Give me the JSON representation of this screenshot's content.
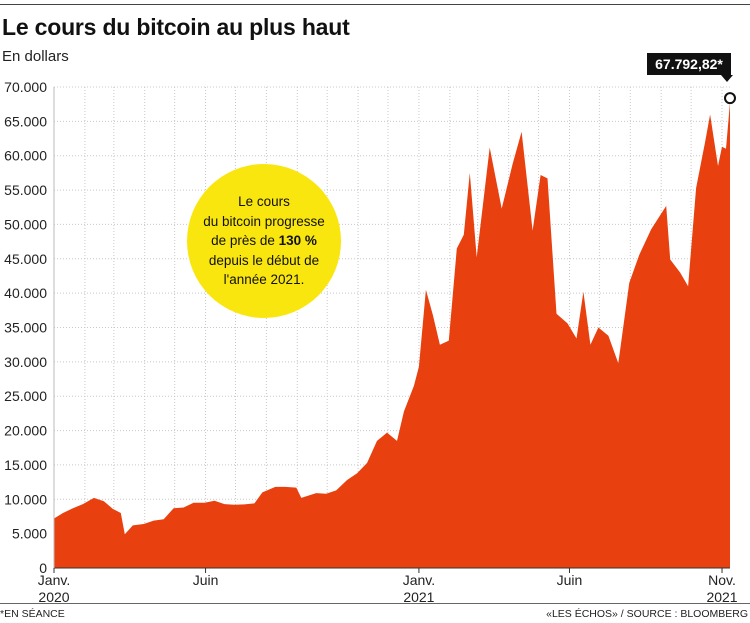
{
  "header": {
    "title": "Le cours du bitcoin au plus haut",
    "subtitle": "En dollars"
  },
  "callout": {
    "line1": "Le cours",
    "line2": "du bitcoin progresse",
    "line3_pre": "de près de ",
    "line3_bold": "130 %",
    "line4": "depuis le début de",
    "line5": "l'année 2021."
  },
  "badge": {
    "value": "67.792,82*"
  },
  "footer": {
    "note": "*EN SÉANCE",
    "source": "«LES ÉCHOS» / SOURCE : BLOOMBERG"
  },
  "colors": {
    "area": "#e8400f",
    "callout": "#fae60f",
    "badge": "#111111"
  },
  "chart_data": {
    "type": "area",
    "ylim": [
      0,
      70000
    ],
    "yticks": [
      "0",
      "5.000",
      "10.000",
      "15.000",
      "20.000",
      "25.000",
      "30.000",
      "35.000",
      "40.000",
      "45.000",
      "50.000",
      "55.000",
      "60.000",
      "65.000",
      "70.000"
    ],
    "xlim": [
      "2020-01-01",
      "2021-11-09"
    ],
    "xticks": [
      {
        "date": "2020-01-01",
        "label": "Janv.",
        "sub": "2020"
      },
      {
        "date": "2020-06-01",
        "label": "Juin",
        "sub": ""
      },
      {
        "date": "2021-01-01",
        "label": "Janv.",
        "sub": "2021"
      },
      {
        "date": "2021-06-01",
        "label": "Juin",
        "sub": ""
      },
      {
        "date": "2021-11-01",
        "label": "Nov.",
        "sub": "2021"
      }
    ],
    "grid": true,
    "series": [
      {
        "values": [
          [
            "2020-01-01",
            7200
          ],
          [
            "2020-01-10",
            8000
          ],
          [
            "2020-01-20",
            8700
          ],
          [
            "2020-01-30",
            9300
          ],
          [
            "2020-02-10",
            10200
          ],
          [
            "2020-02-20",
            9700
          ],
          [
            "2020-02-29",
            8600
          ],
          [
            "2020-03-08",
            8000
          ],
          [
            "2020-03-12",
            4900
          ],
          [
            "2020-03-20",
            6200
          ],
          [
            "2020-03-31",
            6400
          ],
          [
            "2020-04-10",
            6900
          ],
          [
            "2020-04-20",
            7100
          ],
          [
            "2020-04-30",
            8700
          ],
          [
            "2020-05-10",
            8800
          ],
          [
            "2020-05-20",
            9500
          ],
          [
            "2020-05-31",
            9500
          ],
          [
            "2020-06-10",
            9800
          ],
          [
            "2020-06-20",
            9300
          ],
          [
            "2020-06-30",
            9200
          ],
          [
            "2020-07-10",
            9250
          ],
          [
            "2020-07-20",
            9400
          ],
          [
            "2020-07-28",
            11000
          ],
          [
            "2020-08-10",
            11800
          ],
          [
            "2020-08-20",
            11800
          ],
          [
            "2020-08-31",
            11700
          ],
          [
            "2020-09-05",
            10200
          ],
          [
            "2020-09-20",
            10900
          ],
          [
            "2020-09-30",
            10800
          ],
          [
            "2020-10-10",
            11300
          ],
          [
            "2020-10-21",
            12800
          ],
          [
            "2020-10-31",
            13800
          ],
          [
            "2020-11-10",
            15300
          ],
          [
            "2020-11-20",
            18500
          ],
          [
            "2020-11-30",
            19700
          ],
          [
            "2020-12-10",
            18500
          ],
          [
            "2020-12-17",
            22800
          ],
          [
            "2020-12-27",
            26500
          ],
          [
            "2021-01-01",
            29300
          ],
          [
            "2021-01-08",
            40500
          ],
          [
            "2021-01-15",
            36800
          ],
          [
            "2021-01-22",
            32500
          ],
          [
            "2021-01-31",
            33100
          ],
          [
            "2021-02-08",
            46500
          ],
          [
            "2021-02-15",
            48500
          ],
          [
            "2021-02-21",
            57500
          ],
          [
            "2021-02-28",
            45200
          ],
          [
            "2021-03-13",
            61200
          ],
          [
            "2021-03-25",
            52300
          ],
          [
            "2021-04-05",
            58800
          ],
          [
            "2021-04-14",
            63500
          ],
          [
            "2021-04-25",
            49100
          ],
          [
            "2021-05-03",
            57200
          ],
          [
            "2021-05-10",
            56700
          ],
          [
            "2021-05-19",
            37000
          ],
          [
            "2021-05-30",
            35600
          ],
          [
            "2021-06-08",
            33400
          ],
          [
            "2021-06-15",
            40200
          ],
          [
            "2021-06-22",
            32500
          ],
          [
            "2021-06-30",
            35000
          ],
          [
            "2021-07-10",
            33800
          ],
          [
            "2021-07-20",
            29800
          ],
          [
            "2021-07-31",
            41500
          ],
          [
            "2021-08-10",
            45600
          ],
          [
            "2021-08-22",
            49300
          ],
          [
            "2021-09-06",
            52700
          ],
          [
            "2021-09-10",
            44900
          ],
          [
            "2021-09-20",
            43000
          ],
          [
            "2021-09-28",
            41000
          ],
          [
            "2021-10-06",
            55300
          ],
          [
            "2021-10-15",
            62000
          ],
          [
            "2021-10-20",
            66000
          ],
          [
            "2021-10-28",
            58500
          ],
          [
            "2021-11-01",
            61300
          ],
          [
            "2021-11-05",
            61000
          ],
          [
            "2021-11-09",
            67792.82
          ]
        ]
      }
    ]
  }
}
